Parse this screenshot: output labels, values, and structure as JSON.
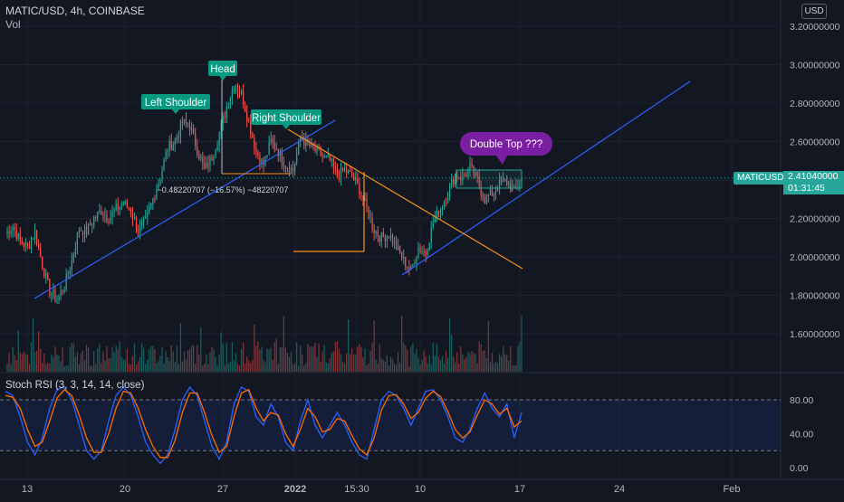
{
  "header": {
    "symbol_line": "MATIC/USD, 4h, COINBASE",
    "volume_label": "Vol",
    "currency": "USD"
  },
  "price_tag": {
    "symbol": "MATICUSD",
    "price": "2.41040000",
    "countdown": "01:31:45"
  },
  "rsi": {
    "title": "Stoch RSI (3, 3, 14, 14, close)"
  },
  "annotations": {
    "head": "Head",
    "left_shoulder": "Left Shoulder",
    "right_shoulder": "Right Shoulder",
    "double_top": "Double Top ???",
    "measure": "−0.48220707 (−16.57%) −48220707"
  },
  "colors": {
    "up": "#26a69a",
    "down": "#ef5350",
    "trend_blue": "#2962ff",
    "trend_orange": "#f7931a",
    "label_teal": "#089981",
    "bubble_purple": "#7b1fa2",
    "k_line": "#2962ff",
    "d_line": "#ff6d00"
  },
  "chart_data": {
    "type": "candlestick",
    "title": "MATIC/USD, 4h, COINBASE",
    "ylim": [
      1.42,
      3.22
    ],
    "y_ticks": [
      "3.20000000",
      "3.00000000",
      "2.80000000",
      "2.60000000",
      "2.40000000",
      "2.20000000",
      "2.00000000",
      "1.80000000",
      "1.60000000"
    ],
    "x_ticks": [
      "13",
      "20",
      "27",
      "2022",
      "15:30",
      "10",
      "17",
      "24",
      "Feb"
    ],
    "last_price": 2.4104,
    "series_approx_close": [
      2.12,
      2.16,
      2.08,
      2.05,
      2.13,
      1.96,
      1.82,
      1.78,
      1.85,
      1.98,
      2.15,
      2.13,
      2.2,
      2.24,
      2.2,
      2.25,
      2.28,
      2.24,
      2.14,
      2.18,
      2.3,
      2.42,
      2.57,
      2.6,
      2.7,
      2.68,
      2.56,
      2.45,
      2.52,
      2.64,
      2.78,
      2.9,
      2.85,
      2.7,
      2.55,
      2.48,
      2.6,
      2.55,
      2.48,
      2.45,
      2.62,
      2.58,
      2.55,
      2.52,
      2.5,
      2.42,
      2.45,
      2.42,
      2.35,
      2.25,
      2.14,
      2.1,
      2.12,
      2.05,
      1.98,
      1.93,
      2.05,
      2.02,
      2.18,
      2.25,
      2.33,
      2.43,
      2.41,
      2.46,
      2.4,
      2.3,
      2.33,
      2.38,
      2.39,
      2.34,
      2.41
    ],
    "stoch_rsi": {
      "levels": [
        80,
        40,
        0
      ],
      "y_ticks": [
        "80.00",
        "40.00",
        "0.00"
      ],
      "k": [
        90,
        85,
        60,
        30,
        15,
        35,
        70,
        92,
        95,
        80,
        50,
        20,
        10,
        20,
        55,
        85,
        95,
        85,
        60,
        30,
        15,
        5,
        15,
        45,
        80,
        95,
        85,
        55,
        25,
        10,
        30,
        75,
        95,
        90,
        60,
        50,
        75,
        60,
        30,
        20,
        55,
        80,
        50,
        35,
        50,
        65,
        50,
        30,
        15,
        10,
        45,
        80,
        90,
        85,
        70,
        50,
        70,
        90,
        92,
        80,
        60,
        35,
        30,
        45,
        70,
        88,
        70,
        60,
        75,
        35,
        65
      ],
      "d": [
        85,
        83,
        70,
        45,
        25,
        30,
        55,
        82,
        92,
        85,
        62,
        35,
        18,
        18,
        40,
        70,
        90,
        88,
        70,
        45,
        25,
        12,
        12,
        32,
        65,
        88,
        88,
        65,
        38,
        18,
        25,
        60,
        88,
        92,
        70,
        55,
        65,
        62,
        40,
        25,
        45,
        70,
        60,
        42,
        45,
        58,
        55,
        38,
        22,
        15,
        35,
        68,
        85,
        86,
        75,
        58,
        65,
        82,
        90,
        84,
        66,
        45,
        35,
        42,
        62,
        80,
        75,
        63,
        70,
        48,
        55
      ]
    },
    "grid": true
  }
}
